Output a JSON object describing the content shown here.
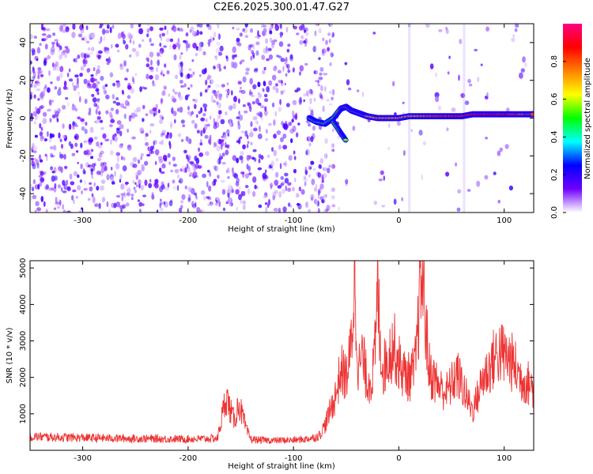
{
  "title": "C2E6.2025.300.01.47.G27",
  "chart_data": [
    {
      "type": "heatmap",
      "xlabel": "Height of straight line (km)",
      "ylabel": "Frequency (Hz)",
      "xlim": [
        -350,
        128
      ],
      "ylim": [
        -50,
        50
      ],
      "xticks": [
        -300,
        -200,
        -100,
        0,
        100
      ],
      "yticks": [
        -40,
        -20,
        0,
        20,
        40
      ],
      "colorbar": {
        "label": "Normalized spectral amplitude",
        "range": [
          0,
          1
        ],
        "ticks": [
          "0.0",
          "0.2",
          "0.4",
          "0.6",
          "0.8"
        ],
        "colormap": [
          "#ffffff",
          "#7000ff",
          "#0000ff",
          "#00ffff",
          "#00ff00",
          "#ffff00",
          "#ff8000",
          "#ff0000",
          "#ff0080"
        ]
      },
      "noise_region": {
        "x_range": [
          -350,
          -62
        ],
        "level": 0.15
      },
      "signal_track": {
        "x": [
          -85,
          -78,
          -70,
          -62,
          -55,
          -50,
          -45,
          -40,
          -35,
          -30,
          -20,
          -10,
          0,
          10,
          20,
          30,
          40,
          50,
          60,
          70,
          80,
          90,
          100,
          110,
          120,
          128
        ],
        "frequency": [
          0,
          -2,
          -3,
          0,
          5,
          6,
          4,
          3,
          2,
          1,
          0,
          0,
          0,
          1,
          1,
          1,
          1,
          1,
          1,
          2,
          2,
          2,
          2,
          2,
          2,
          2
        ],
        "amplitude": [
          0.45,
          0.45,
          0.45,
          0.5,
          0.55,
          0.55,
          0.6,
          0.6,
          0.65,
          0.7,
          0.7,
          0.75,
          0.7,
          0.75,
          0.75,
          0.8,
          0.8,
          0.85,
          0.85,
          0.85,
          0.9,
          0.9,
          0.85,
          0.8,
          0.8,
          0.75
        ]
      },
      "branch_track": {
        "x": [
          -62,
          -55,
          -50
        ],
        "frequency": [
          -2,
          -8,
          -12
        ]
      }
    },
    {
      "type": "line",
      "xlabel": "Height of straight line (km)",
      "ylabel": "SNR (10 * v/v)",
      "xlim": [
        -350,
        128
      ],
      "ylim": [
        0,
        5200
      ],
      "xticks": [
        -300,
        -200,
        -100,
        0,
        100
      ],
      "yticks": [
        1000,
        2000,
        3000,
        4000,
        5000
      ],
      "color": "#ee3333",
      "series": [
        {
          "x": [
            -350,
            -340,
            -330,
            -320,
            -310,
            -300,
            -290,
            -280,
            -270,
            -260,
            -250,
            -240,
            -230,
            -220,
            -210,
            -200,
            -190,
            -180,
            -172,
            -168,
            -164,
            -160,
            -156,
            -152,
            -148,
            -144,
            -140,
            -130,
            -120,
            -110,
            -100,
            -90,
            -80,
            -75,
            -70,
            -65,
            -60,
            -55,
            -50,
            -46,
            -44,
            -42,
            -40,
            -38,
            -35,
            -30,
            -25,
            -22,
            -20,
            -18,
            -15,
            -10,
            -5,
            0,
            5,
            10,
            15,
            18,
            20,
            22,
            24,
            26,
            28,
            30,
            35,
            40,
            45,
            50,
            55,
            60,
            65,
            70,
            75,
            80,
            85,
            90,
            95,
            100,
            105,
            110,
            115,
            120,
            125,
            128
          ],
          "y": [
            380,
            370,
            360,
            355,
            350,
            345,
            340,
            335,
            330,
            325,
            320,
            318,
            315,
            312,
            310,
            310,
            312,
            320,
            330,
            900,
            1500,
            1100,
            800,
            1300,
            900,
            500,
            300,
            280,
            270,
            275,
            280,
            300,
            350,
            420,
            700,
            1100,
            1500,
            2200,
            2000,
            2600,
            3500,
            4800,
            3200,
            2200,
            2600,
            1900,
            2000,
            2900,
            4600,
            3100,
            2200,
            2600,
            2900,
            2400,
            2100,
            2000,
            2200,
            3200,
            4500,
            4800,
            4200,
            3300,
            2400,
            2100,
            1900,
            1700,
            1600,
            1800,
            2100,
            1800,
            1400,
            1100,
            1500,
            2000,
            2200,
            2500,
            2700,
            2600,
            2500,
            2300,
            2000,
            1900,
            1800,
            1700
          ]
        }
      ]
    }
  ]
}
